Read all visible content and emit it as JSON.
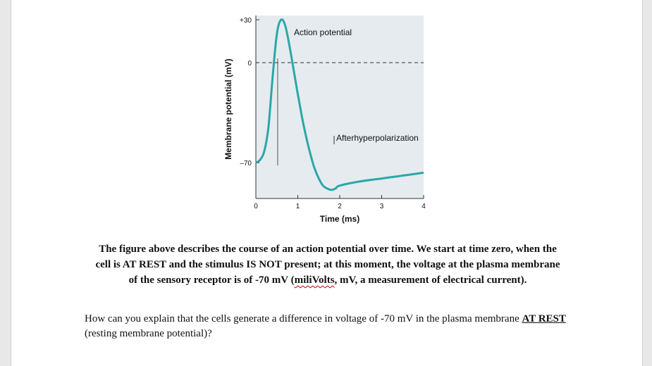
{
  "chart_data": {
    "type": "line",
    "title": "",
    "xlabel": "Time (ms)",
    "ylabel": "Membrane potential (mV)",
    "xlim": [
      0,
      4
    ],
    "ylim": [
      -95,
      33
    ],
    "x_ticks": [
      "0",
      "1",
      "2",
      "3",
      "4"
    ],
    "y_ticks": [
      "+30",
      "0",
      "–70"
    ],
    "annotations": [
      "Action potential",
      "Afterhyperpolarization"
    ],
    "reference_line_y": 0,
    "grid": false,
    "series": [
      {
        "x": [
          0,
          0.1,
          0.2,
          0.3,
          0.4,
          0.5,
          0.6,
          0.7,
          0.8,
          0.9,
          1.0,
          1.1,
          1.2,
          1.3,
          1.4,
          1.5,
          1.6,
          1.7,
          1.8,
          1.9,
          2.0,
          2.5,
          3.0,
          3.5,
          4.0
        ],
        "y": [
          -70,
          -68,
          -62,
          -45,
          -10,
          20,
          30,
          26,
          12,
          -5,
          -22,
          -38,
          -52,
          -64,
          -74,
          -81,
          -86,
          -88,
          -89,
          -88,
          -86,
          -83,
          -81,
          -79,
          -77
        ]
      }
    ],
    "line_color": "#2aa7a7",
    "plot_background": "#e6ebef"
  },
  "text": {
    "para1_part1": "The figure above describes the course of an action potential over time. We start at time zero, when the cell is AT REST and the stimulus IS NOT present; at this moment, the voltage at the plasma membrane of the sensory receptor is of -70 mV (",
    "para1_squiggle": "miliVolts",
    "para1_part2": ", mV, a measurement of electrical current).",
    "para2_part1": "How can you explain that the cells generate a difference in voltage of -70 mV in the plasma membrane ",
    "para2_underlined": "AT REST",
    "para2_part2": " (resting membrane potential)?"
  }
}
